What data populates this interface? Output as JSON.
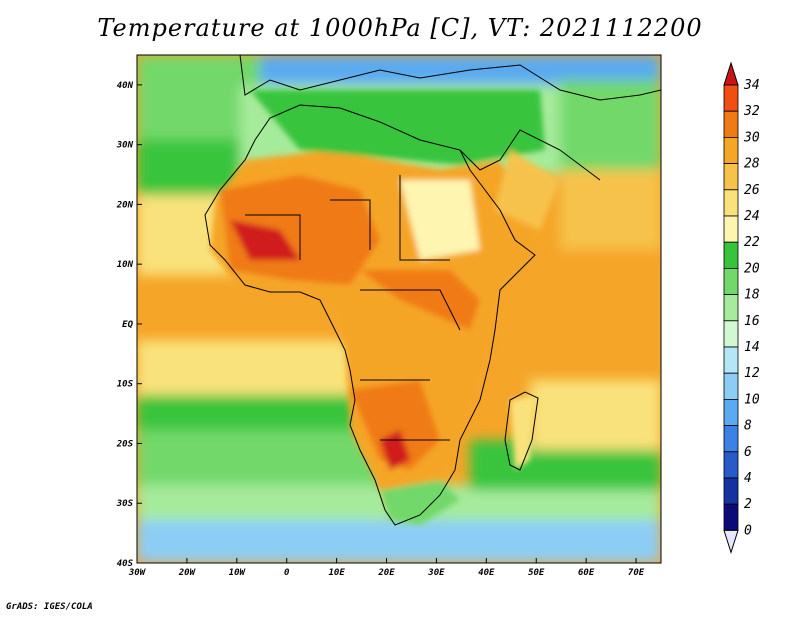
{
  "title": "Temperature at 1000hPa [C], VT: 2021112200",
  "credit": "GrADS: IGES/COLA",
  "map": {
    "type": "filled-contour-map",
    "variable": "Temperature at 1000hPa [C]",
    "lon_range": [
      -30,
      75
    ],
    "lat_range": [
      -40,
      45
    ],
    "lon_ticks": [
      "30W",
      "20W",
      "10W",
      "0",
      "10E",
      "20E",
      "30E",
      "40E",
      "50E",
      "60E",
      "70E"
    ],
    "lon_values": [
      -30,
      -20,
      -10,
      0,
      10,
      20,
      30,
      40,
      50,
      60,
      70
    ],
    "lat_ticks": [
      "40N",
      "30N",
      "20N",
      "10N",
      "EQ",
      "10S",
      "20S",
      "30S",
      "40S"
    ],
    "lat_values": [
      40,
      30,
      20,
      10,
      0,
      -10,
      -20,
      -30,
      -40
    ]
  },
  "colorbar": {
    "labels": [
      "34",
      "32",
      "30",
      "28",
      "26",
      "24",
      "22",
      "20",
      "18",
      "16",
      "14",
      "12",
      "10",
      "8",
      "6",
      "4",
      "2",
      "0"
    ],
    "colors": [
      "#d01e1e",
      "#f04e14",
      "#f07a14",
      "#f5a528",
      "#f7c24b",
      "#f9e27c",
      "#fdf5b0",
      "#37c43c",
      "#72d86b",
      "#a6eb9b",
      "#d2f8d2",
      "#b4e6f5",
      "#8ccdf5",
      "#5aaaf0",
      "#3c82e6",
      "#285ac8",
      "#1432a0",
      "#0a0a78"
    ],
    "top_color": "#c81414",
    "bottom_color": "#e6e6ff"
  }
}
